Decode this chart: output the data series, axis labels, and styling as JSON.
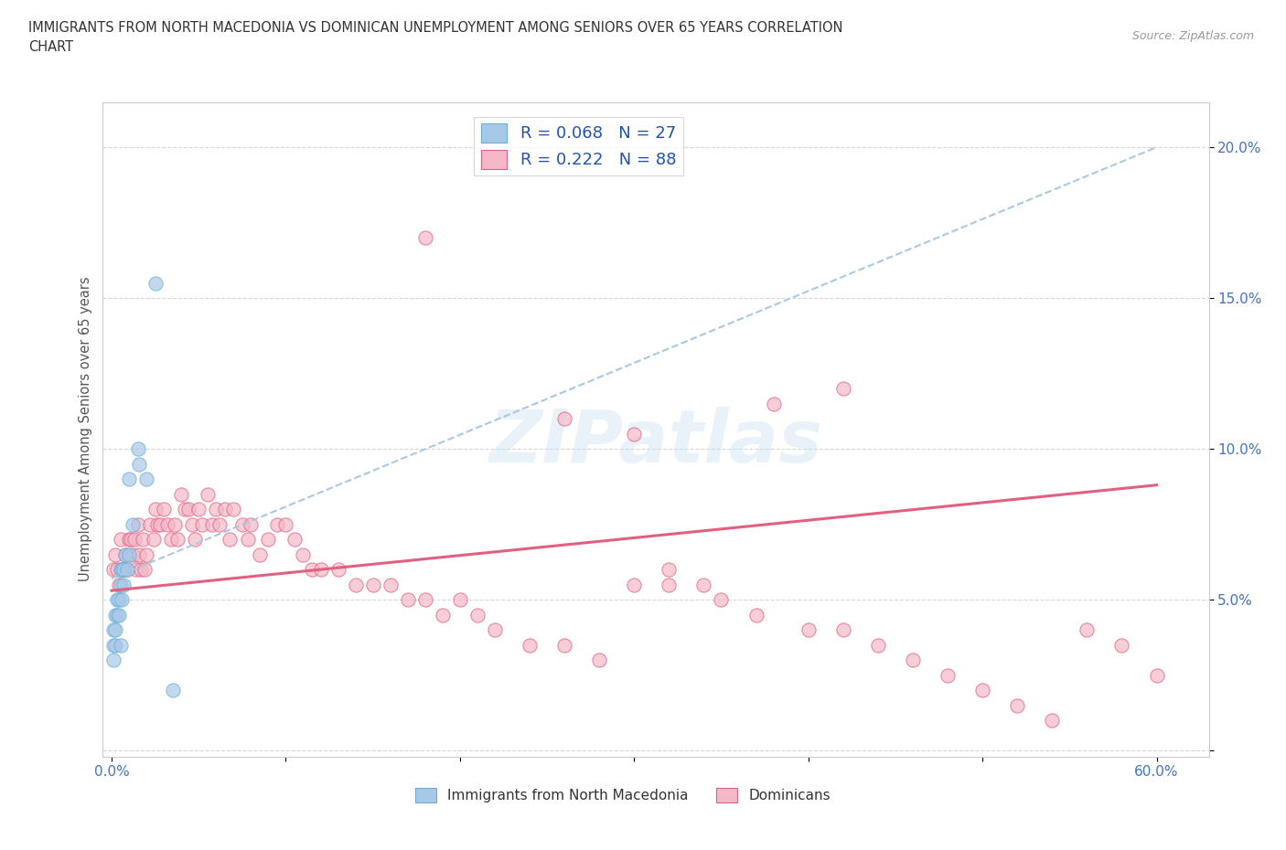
{
  "title_line1": "IMMIGRANTS FROM NORTH MACEDONIA VS DOMINICAN UNEMPLOYMENT AMONG SENIORS OVER 65 YEARS CORRELATION",
  "title_line2": "CHART",
  "source": "Source: ZipAtlas.com",
  "ylabel": "Unemployment Among Seniors over 65 years",
  "xlim": [
    -0.005,
    0.63
  ],
  "ylim": [
    -0.002,
    0.215
  ],
  "x_ticks": [
    0.0,
    0.1,
    0.2,
    0.3,
    0.4,
    0.5,
    0.6
  ],
  "y_ticks": [
    0.0,
    0.05,
    0.1,
    0.15,
    0.2
  ],
  "color_blue": "#a8c8e8",
  "color_pink": "#f4b8c8",
  "color_blue_line": "#6aaed6",
  "color_pink_line": "#e06080",
  "blue_r": "0.068",
  "blue_n": "27",
  "pink_r": "0.222",
  "pink_n": "88",
  "blue_trend_x": [
    0.0,
    0.6
  ],
  "blue_trend_y": [
    0.057,
    0.2
  ],
  "pink_trend_x": [
    0.0,
    0.6
  ],
  "pink_trend_y": [
    0.053,
    0.088
  ],
  "blue_x": [
    0.001,
    0.001,
    0.001,
    0.002,
    0.002,
    0.002,
    0.003,
    0.003,
    0.004,
    0.004,
    0.005,
    0.005,
    0.005,
    0.006,
    0.006,
    0.007,
    0.007,
    0.008,
    0.009,
    0.01,
    0.01,
    0.012,
    0.015,
    0.016,
    0.02,
    0.025,
    0.035
  ],
  "blue_y": [
    0.04,
    0.035,
    0.03,
    0.045,
    0.04,
    0.035,
    0.05,
    0.045,
    0.05,
    0.045,
    0.06,
    0.055,
    0.035,
    0.06,
    0.05,
    0.06,
    0.055,
    0.065,
    0.06,
    0.09,
    0.065,
    0.075,
    0.1,
    0.095,
    0.09,
    0.155,
    0.02
  ],
  "pink_x": [
    0.001,
    0.002,
    0.003,
    0.004,
    0.005,
    0.006,
    0.007,
    0.008,
    0.009,
    0.01,
    0.011,
    0.012,
    0.013,
    0.014,
    0.015,
    0.016,
    0.017,
    0.018,
    0.019,
    0.02,
    0.022,
    0.024,
    0.025,
    0.026,
    0.028,
    0.03,
    0.032,
    0.034,
    0.036,
    0.038,
    0.04,
    0.042,
    0.044,
    0.046,
    0.048,
    0.05,
    0.052,
    0.055,
    0.058,
    0.06,
    0.062,
    0.065,
    0.068,
    0.07,
    0.075,
    0.078,
    0.08,
    0.085,
    0.09,
    0.095,
    0.1,
    0.105,
    0.11,
    0.115,
    0.12,
    0.13,
    0.14,
    0.15,
    0.16,
    0.17,
    0.18,
    0.19,
    0.2,
    0.21,
    0.22,
    0.24,
    0.26,
    0.28,
    0.3,
    0.32,
    0.35,
    0.37,
    0.4,
    0.42,
    0.44,
    0.46,
    0.48,
    0.5,
    0.52,
    0.54,
    0.56,
    0.58,
    0.6,
    0.32,
    0.34,
    0.18,
    0.3,
    0.26,
    0.38,
    0.42
  ],
  "pink_y": [
    0.06,
    0.065,
    0.06,
    0.055,
    0.07,
    0.06,
    0.06,
    0.065,
    0.06,
    0.07,
    0.07,
    0.065,
    0.07,
    0.06,
    0.075,
    0.065,
    0.06,
    0.07,
    0.06,
    0.065,
    0.075,
    0.07,
    0.08,
    0.075,
    0.075,
    0.08,
    0.075,
    0.07,
    0.075,
    0.07,
    0.085,
    0.08,
    0.08,
    0.075,
    0.07,
    0.08,
    0.075,
    0.085,
    0.075,
    0.08,
    0.075,
    0.08,
    0.07,
    0.08,
    0.075,
    0.07,
    0.075,
    0.065,
    0.07,
    0.075,
    0.075,
    0.07,
    0.065,
    0.06,
    0.06,
    0.06,
    0.055,
    0.055,
    0.055,
    0.05,
    0.05,
    0.045,
    0.05,
    0.045,
    0.04,
    0.035,
    0.035,
    0.03,
    0.055,
    0.055,
    0.05,
    0.045,
    0.04,
    0.04,
    0.035,
    0.03,
    0.025,
    0.02,
    0.015,
    0.01,
    0.04,
    0.035,
    0.025,
    0.06,
    0.055,
    0.17,
    0.105,
    0.11,
    0.115,
    0.12
  ]
}
